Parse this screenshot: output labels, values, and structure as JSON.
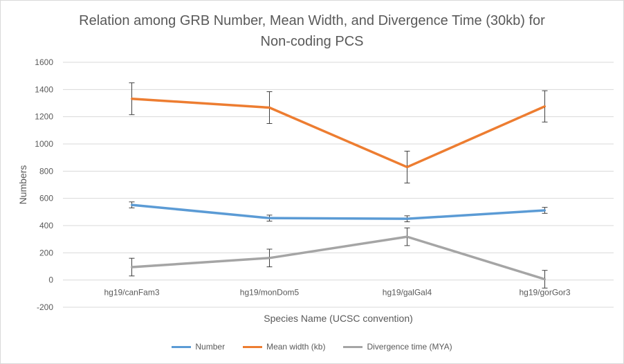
{
  "chart_data": {
    "type": "line",
    "title_line1": "Relation among GRB Number, Mean Width, and Divergence Time (30kb) for",
    "title_line2": "Non-coding PCS",
    "xlabel": "Species Name (UCSC convention)",
    "ylabel": "Numbers",
    "ylim": [
      -200,
      1600
    ],
    "yticks": [
      -200,
      0,
      200,
      400,
      600,
      800,
      1000,
      1200,
      1400,
      1600
    ],
    "grid": true,
    "legend_position": "bottom",
    "categories": [
      "hg19/canFam3",
      "hg19/monDom5",
      "hg19/galGal4",
      "hg19/gorGor3"
    ],
    "series": [
      {
        "name": "Number",
        "color": "#5b9bd5",
        "values": [
          552,
          455,
          450,
          512
        ],
        "errors": [
          22,
          22,
          22,
          22
        ]
      },
      {
        "name": "Mean width (kb)",
        "color": "#ed7d31",
        "values": [
          1332,
          1267,
          830,
          1276
        ],
        "errors": [
          117,
          117,
          117,
          115
        ]
      },
      {
        "name": "Divergence time (MYA)",
        "color": "#a5a5a5",
        "values": [
          95,
          162,
          318,
          6
        ],
        "errors": [
          65,
          65,
          65,
          65
        ]
      }
    ]
  }
}
